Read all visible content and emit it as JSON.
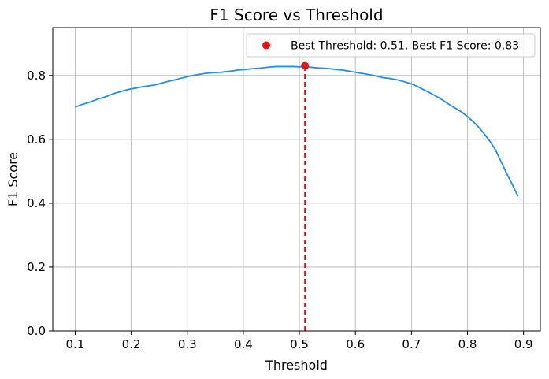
{
  "chart_data": {
    "type": "line",
    "title": "F1 Score vs Threshold",
    "xlabel": "Threshold",
    "ylabel": "F1 Score",
    "xlim": [
      0.06,
      0.93
    ],
    "ylim": [
      0.0,
      0.95
    ],
    "xticks": [
      0.1,
      0.2,
      0.3,
      0.4,
      0.5,
      0.6,
      0.7,
      0.8,
      0.9
    ],
    "yticks": [
      0.0,
      0.2,
      0.4,
      0.6,
      0.8
    ],
    "xtick_labels": [
      "0.1",
      "0.2",
      "0.3",
      "0.4",
      "0.5",
      "0.6",
      "0.7",
      "0.8",
      "0.9"
    ],
    "ytick_labels": [
      "0.0",
      "0.2",
      "0.4",
      "0.6",
      "0.8"
    ],
    "grid": true,
    "legend_position": "top-right",
    "series": [
      {
        "color": "#1f8ff0",
        "x": [
          0.1,
          0.11,
          0.12,
          0.13,
          0.14,
          0.15,
          0.16,
          0.17,
          0.18,
          0.19,
          0.2,
          0.21,
          0.22,
          0.23,
          0.24,
          0.25,
          0.26,
          0.27,
          0.28,
          0.29,
          0.3,
          0.31,
          0.32,
          0.33,
          0.34,
          0.35,
          0.36,
          0.37,
          0.38,
          0.39,
          0.4,
          0.41,
          0.42,
          0.43,
          0.44,
          0.45,
          0.46,
          0.47,
          0.48,
          0.49,
          0.5,
          0.51,
          0.52,
          0.53,
          0.54,
          0.55,
          0.56,
          0.57,
          0.58,
          0.59,
          0.6,
          0.61,
          0.62,
          0.63,
          0.64,
          0.65,
          0.66,
          0.67,
          0.68,
          0.69,
          0.7,
          0.71,
          0.72,
          0.73,
          0.74,
          0.75,
          0.76,
          0.77,
          0.78,
          0.79,
          0.8,
          0.81,
          0.82,
          0.83,
          0.84,
          0.85,
          0.86,
          0.87,
          0.88,
          0.89
        ],
        "y": [
          0.701,
          0.708,
          0.713,
          0.719,
          0.726,
          0.731,
          0.737,
          0.744,
          0.749,
          0.754,
          0.758,
          0.761,
          0.765,
          0.767,
          0.77,
          0.774,
          0.779,
          0.783,
          0.787,
          0.792,
          0.796,
          0.8,
          0.803,
          0.806,
          0.808,
          0.809,
          0.81,
          0.812,
          0.814,
          0.817,
          0.818,
          0.82,
          0.822,
          0.823,
          0.825,
          0.827,
          0.828,
          0.828,
          0.828,
          0.828,
          0.827,
          0.828,
          0.826,
          0.824,
          0.823,
          0.822,
          0.82,
          0.818,
          0.816,
          0.813,
          0.81,
          0.807,
          0.804,
          0.801,
          0.797,
          0.793,
          0.791,
          0.788,
          0.784,
          0.779,
          0.774,
          0.766,
          0.757,
          0.748,
          0.739,
          0.729,
          0.718,
          0.706,
          0.696,
          0.685,
          0.671,
          0.656,
          0.638,
          0.617,
          0.594,
          0.567,
          0.53,
          0.493,
          0.458,
          0.422
        ]
      },
      {
        "name": "Best Threshold: 0.51, Best F1 Score: 0.83",
        "type": "scatter",
        "color": "#ee1111",
        "x": [
          0.51
        ],
        "y": [
          0.83
        ]
      }
    ],
    "vline": {
      "x": 0.51,
      "color": "#dd1111",
      "style": "dashed"
    }
  }
}
